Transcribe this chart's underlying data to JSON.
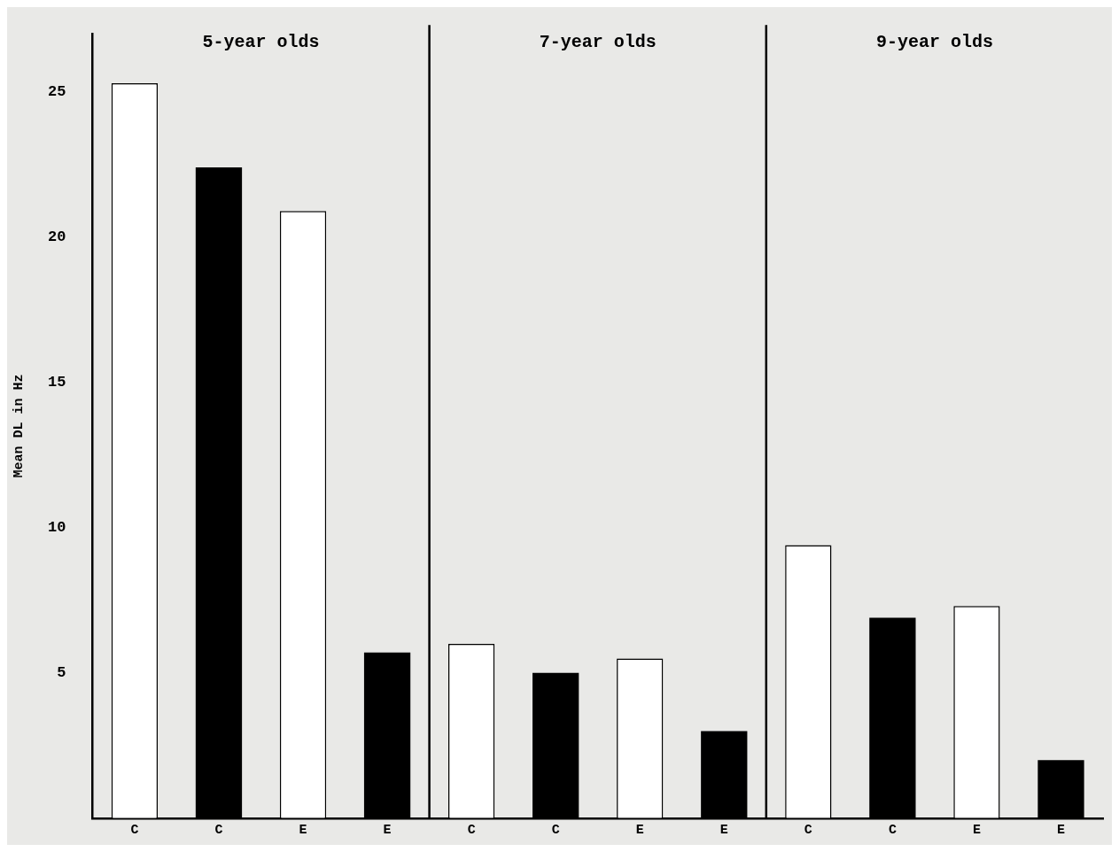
{
  "chart_data": {
    "type": "bar",
    "ylabel": "Mean DL in Hz",
    "categories": [
      "C",
      "C",
      "E",
      "E",
      "C",
      "C",
      "E",
      "E",
      "C",
      "C",
      "E",
      "E"
    ],
    "values": [
      25.3,
      22.4,
      20.9,
      5.7,
      6.0,
      5.0,
      5.5,
      3.0,
      9.4,
      6.9,
      7.3,
      2.0
    ],
    "colors": [
      "#ffffff",
      "#000000",
      "#ffffff",
      "#000000",
      "#ffffff",
      "#000000",
      "#ffffff",
      "#000000",
      "#ffffff",
      "#000000",
      "#ffffff",
      "#000000"
    ],
    "ylim": [
      0,
      27
    ],
    "yticks": [
      5,
      10,
      15,
      20,
      25
    ],
    "grid": false,
    "legend": false,
    "annotations": [
      "5-year olds",
      "7-year olds",
      "9-year olds"
    ]
  }
}
